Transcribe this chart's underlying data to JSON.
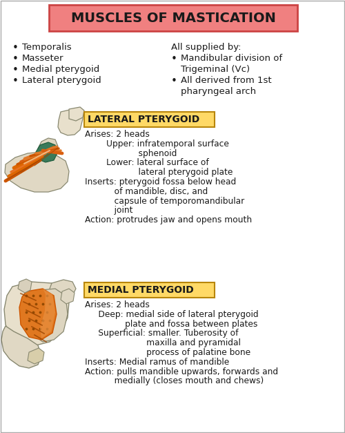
{
  "title": "MUSCLES OF MASTICATION",
  "title_bg": "#F08080",
  "title_border": "#CC4444",
  "background": "#FFFFFF",
  "section1_bullets_left": [
    "Temporalis",
    "Masseter",
    "Medial pterygoid",
    "Lateral pterygoid"
  ],
  "section1_right_header": "All supplied by:",
  "lateral_label": "LATERAL PTERYGOID",
  "lateral_label_bg": "#FFD966",
  "lateral_label_border": "#B8860B",
  "lateral_text": [
    "Arises: 2 heads",
    "        Upper: infratemporal surface",
    "                    sphenoid",
    "        Lower: lateral surface of",
    "                    lateral pterygoid plate",
    "Inserts: pterygoid fossa below head",
    "           of mandible, disc, and",
    "           capsule of temporomandibular",
    "           joint",
    "Action: protrudes jaw and opens mouth"
  ],
  "medial_label": "MEDIAL PTERYGOID",
  "medial_label_bg": "#FFD966",
  "medial_label_border": "#B8860B",
  "medial_text": [
    "Arises: 2 heads",
    "     Deep: medial side of lateral pterygoid",
    "               plate and fossa between plates",
    "     Superficial: smaller. Tuberosity of",
    "                       maxilla and pyramidal",
    "                       process of palatine bone",
    "Inserts: Medial ramus of mandible",
    "Action: pulls mandible upwards, forwards and",
    "           medially (closes mouth and chews)"
  ],
  "text_color": "#1a1a1a",
  "bullet_color": "#1a1a1a"
}
